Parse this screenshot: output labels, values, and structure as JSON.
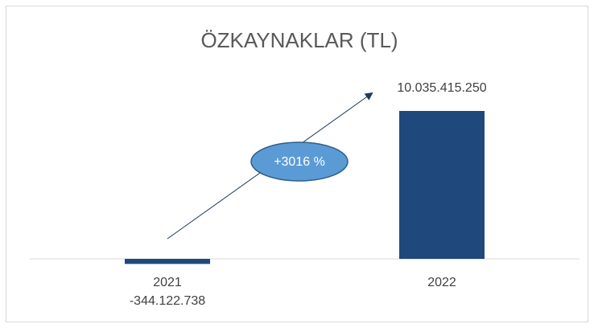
{
  "chart_data": {
    "type": "bar",
    "title": "ÖZKAYNAKLAR (TL)",
    "categories": [
      "2021",
      "2022"
    ],
    "values": [
      -344122738,
      10035415250
    ],
    "value_labels": [
      "-344.122.738",
      "10.035.415.250"
    ],
    "color": "#1f497d",
    "annotation": "+3016 %"
  }
}
